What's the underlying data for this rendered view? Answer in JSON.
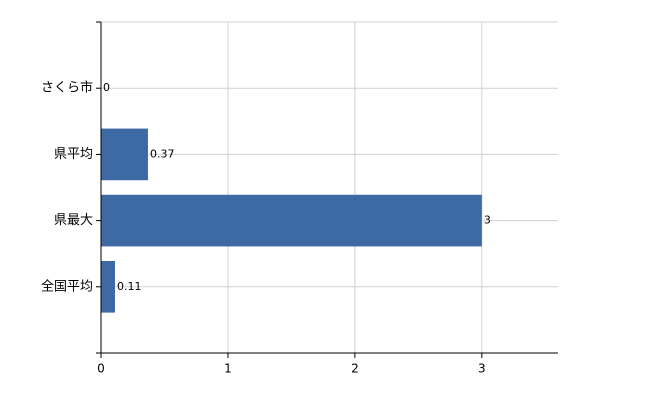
{
  "chart_data": {
    "type": "barh",
    "categories": [
      "さくら市",
      "県平均",
      "県最大",
      "全国平均"
    ],
    "values": [
      0,
      0.37,
      3,
      0.11
    ],
    "color": "#3d6aa5",
    "xlim": [
      0,
      3.6
    ],
    "xticks": [
      0,
      1,
      2,
      3
    ],
    "grid": true
  }
}
